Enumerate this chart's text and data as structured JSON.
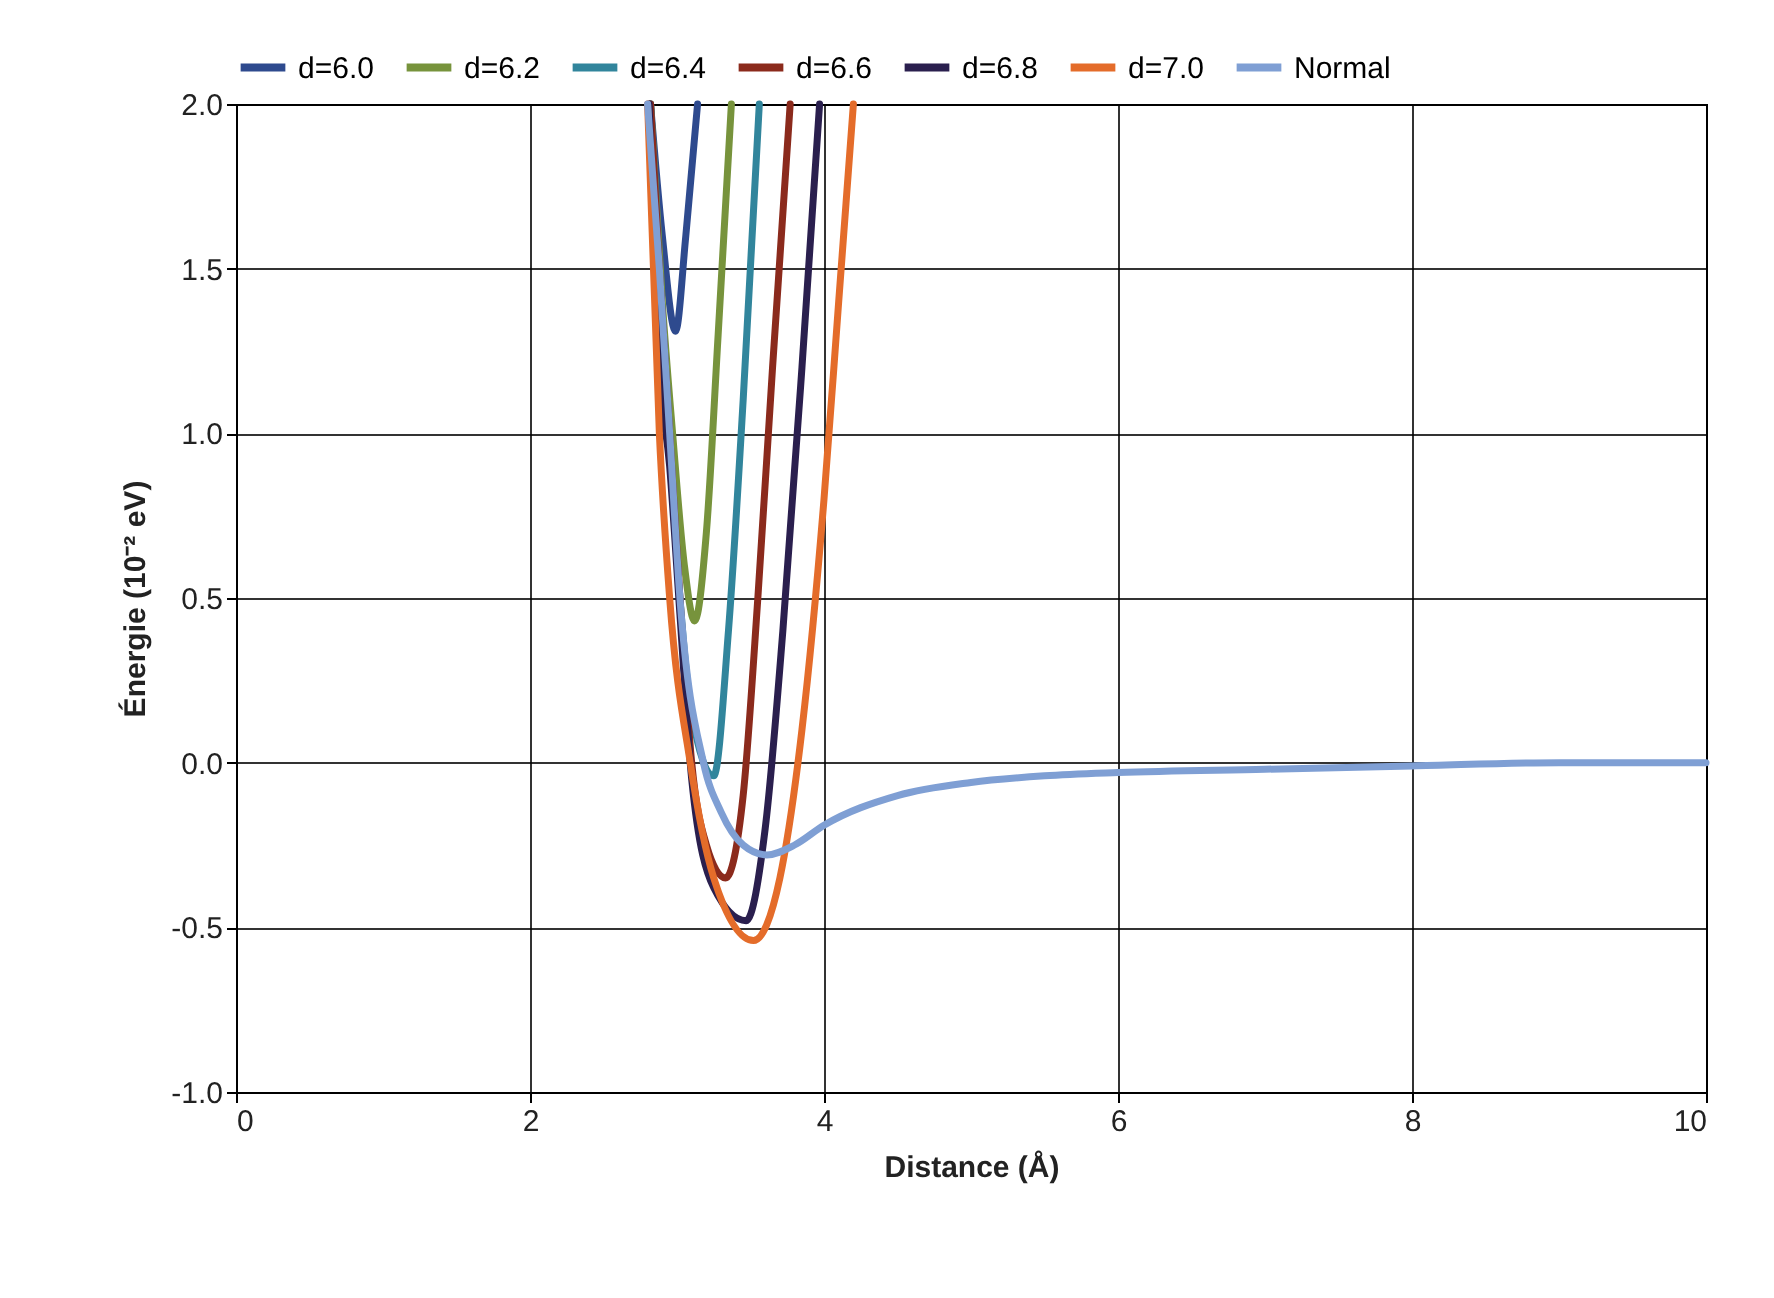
{
  "chart_data": {
    "type": "line",
    "xlabel": "Distance (Å)",
    "ylabel": "Énergie (10⁻² eV)",
    "xlim": [
      0,
      10
    ],
    "xticks": [
      0,
      2,
      4,
      6,
      8,
      10
    ],
    "ylim": [
      -1,
      2
    ],
    "yticks": [
      {
        "value": -1,
        "label": "-1.0"
      },
      {
        "value": -0.5,
        "label": "-0.5"
      },
      {
        "value": 0,
        "label": "0.0"
      },
      {
        "value": 0.5,
        "label": "0.5"
      },
      {
        "value": 1,
        "label": "1.0"
      },
      {
        "value": 1.5,
        "label": "1.5"
      },
      {
        "value": 2,
        "label": "2.0"
      }
    ],
    "grid": true,
    "legend": "top",
    "marker": "none",
    "line_style": "solid",
    "series": [
      {
        "name": "d=6.0",
        "color": "#2e4a8e",
        "x": [
          2.82,
          2.9,
          2.99,
          3.06,
          3.14
        ],
        "values": [
          2.0,
          1.6,
          1.31,
          1.6,
          2.0
        ]
      },
      {
        "name": "d=6.2",
        "color": "#77933c",
        "x": [
          2.82,
          2.9,
          2.97,
          3.05,
          3.12,
          3.2,
          3.28,
          3.37
        ],
        "values": [
          2.0,
          1.4,
          1.0,
          0.6,
          0.43,
          0.7,
          1.3,
          2.0
        ]
      },
      {
        "name": "d=6.4",
        "color": "#31859c",
        "x": [
          2.82,
          2.88,
          2.95,
          3.02,
          3.1,
          3.25,
          3.35,
          3.45,
          3.56
        ],
        "values": [
          2.0,
          1.5,
          1.0,
          0.5,
          0.15,
          -0.04,
          0.4,
          1.1,
          2.0
        ]
      },
      {
        "name": "d=6.6",
        "color": "#8b2a1c",
        "x": [
          2.82,
          2.88,
          2.95,
          3.02,
          3.1,
          3.2,
          3.33,
          3.45,
          3.55,
          3.65,
          3.77
        ],
        "values": [
          2.0,
          1.5,
          1.0,
          0.5,
          0.0,
          -0.25,
          -0.35,
          -0.1,
          0.5,
          1.2,
          2.0
        ]
      },
      {
        "name": "d=6.8",
        "color": "#2a1f4e",
        "x": [
          2.81,
          2.88,
          2.95,
          3.02,
          3.1,
          3.25,
          3.47,
          3.6,
          3.72,
          3.85,
          3.97
        ],
        "values": [
          2.0,
          1.2,
          0.9,
          0.45,
          -0.05,
          -0.38,
          -0.48,
          -0.2,
          0.4,
          1.2,
          2.0
        ]
      },
      {
        "name": "d=7.0",
        "color": "#e46c2a",
        "x": [
          2.8,
          2.88,
          2.95,
          3.09,
          3.25,
          3.52,
          3.7,
          3.85,
          4.0,
          4.1,
          4.2
        ],
        "values": [
          2.0,
          1.0,
          0.5,
          0.0,
          -0.35,
          -0.54,
          -0.35,
          0.1,
          0.8,
          1.4,
          2.0
        ]
      },
      {
        "name": "Normal",
        "color": "#7f9fd4",
        "x": [
          2.8,
          2.88,
          2.95,
          3.02,
          3.18,
          3.3,
          3.45,
          3.61,
          3.8,
          4.0,
          4.5,
          5.0,
          5.5,
          6,
          7,
          8,
          9,
          10
        ],
        "values": [
          2.0,
          1.5,
          1.0,
          0.5,
          0.0,
          -0.15,
          -0.25,
          -0.28,
          -0.25,
          -0.19,
          -0.1,
          -0.06,
          -0.04,
          -0.03,
          -0.02,
          -0.01,
          0.0,
          0.0
        ]
      }
    ]
  }
}
